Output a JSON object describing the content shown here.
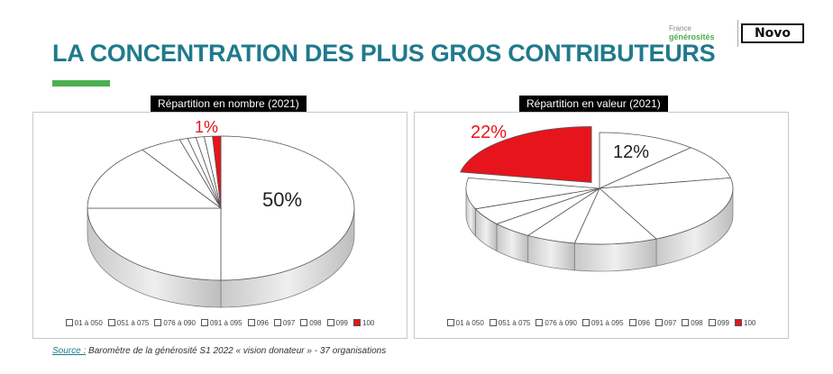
{
  "header": {
    "title": "LA CONCENTRATION DES PLUS GROS CONTRIBUTEURS",
    "logo_france_line1": "France",
    "logo_france_line2": "générosités",
    "logo_novo": "Novo"
  },
  "colors": {
    "title": "#1f7a8c",
    "accent": "#4caf50",
    "highlight": "#e8141c",
    "slice": "#ffffff"
  },
  "chart_data": [
    {
      "type": "pie",
      "title": "Répartition en nombre (2021)",
      "categories": [
        "01 à 050",
        "051 à 075",
        "076 à 090",
        "091 à 095",
        "096",
        "097",
        "098",
        "099",
        "100"
      ],
      "values": [
        50,
        25,
        15,
        5,
        1,
        1,
        1,
        1,
        1
      ],
      "labels": {
        "0": "50%",
        "8": "1%"
      },
      "highlight_index": 8
    },
    {
      "type": "pie",
      "title": "Répartition en valeur (2021)",
      "categories": [
        "01 à 050",
        "051 à 075",
        "076 à 090",
        "091 à 095",
        "096",
        "097",
        "098",
        "099",
        "100"
      ],
      "values": [
        12,
        10,
        21,
        10,
        6,
        5,
        5,
        9,
        22
      ],
      "labels": {
        "0": "12%",
        "8": "22%"
      },
      "highlight_index": 8
    }
  ],
  "footer": {
    "source_label": "Source :",
    "source_text": " Baromètre de la générosité S1 2022 « vision donateur » - 37 organisations"
  }
}
